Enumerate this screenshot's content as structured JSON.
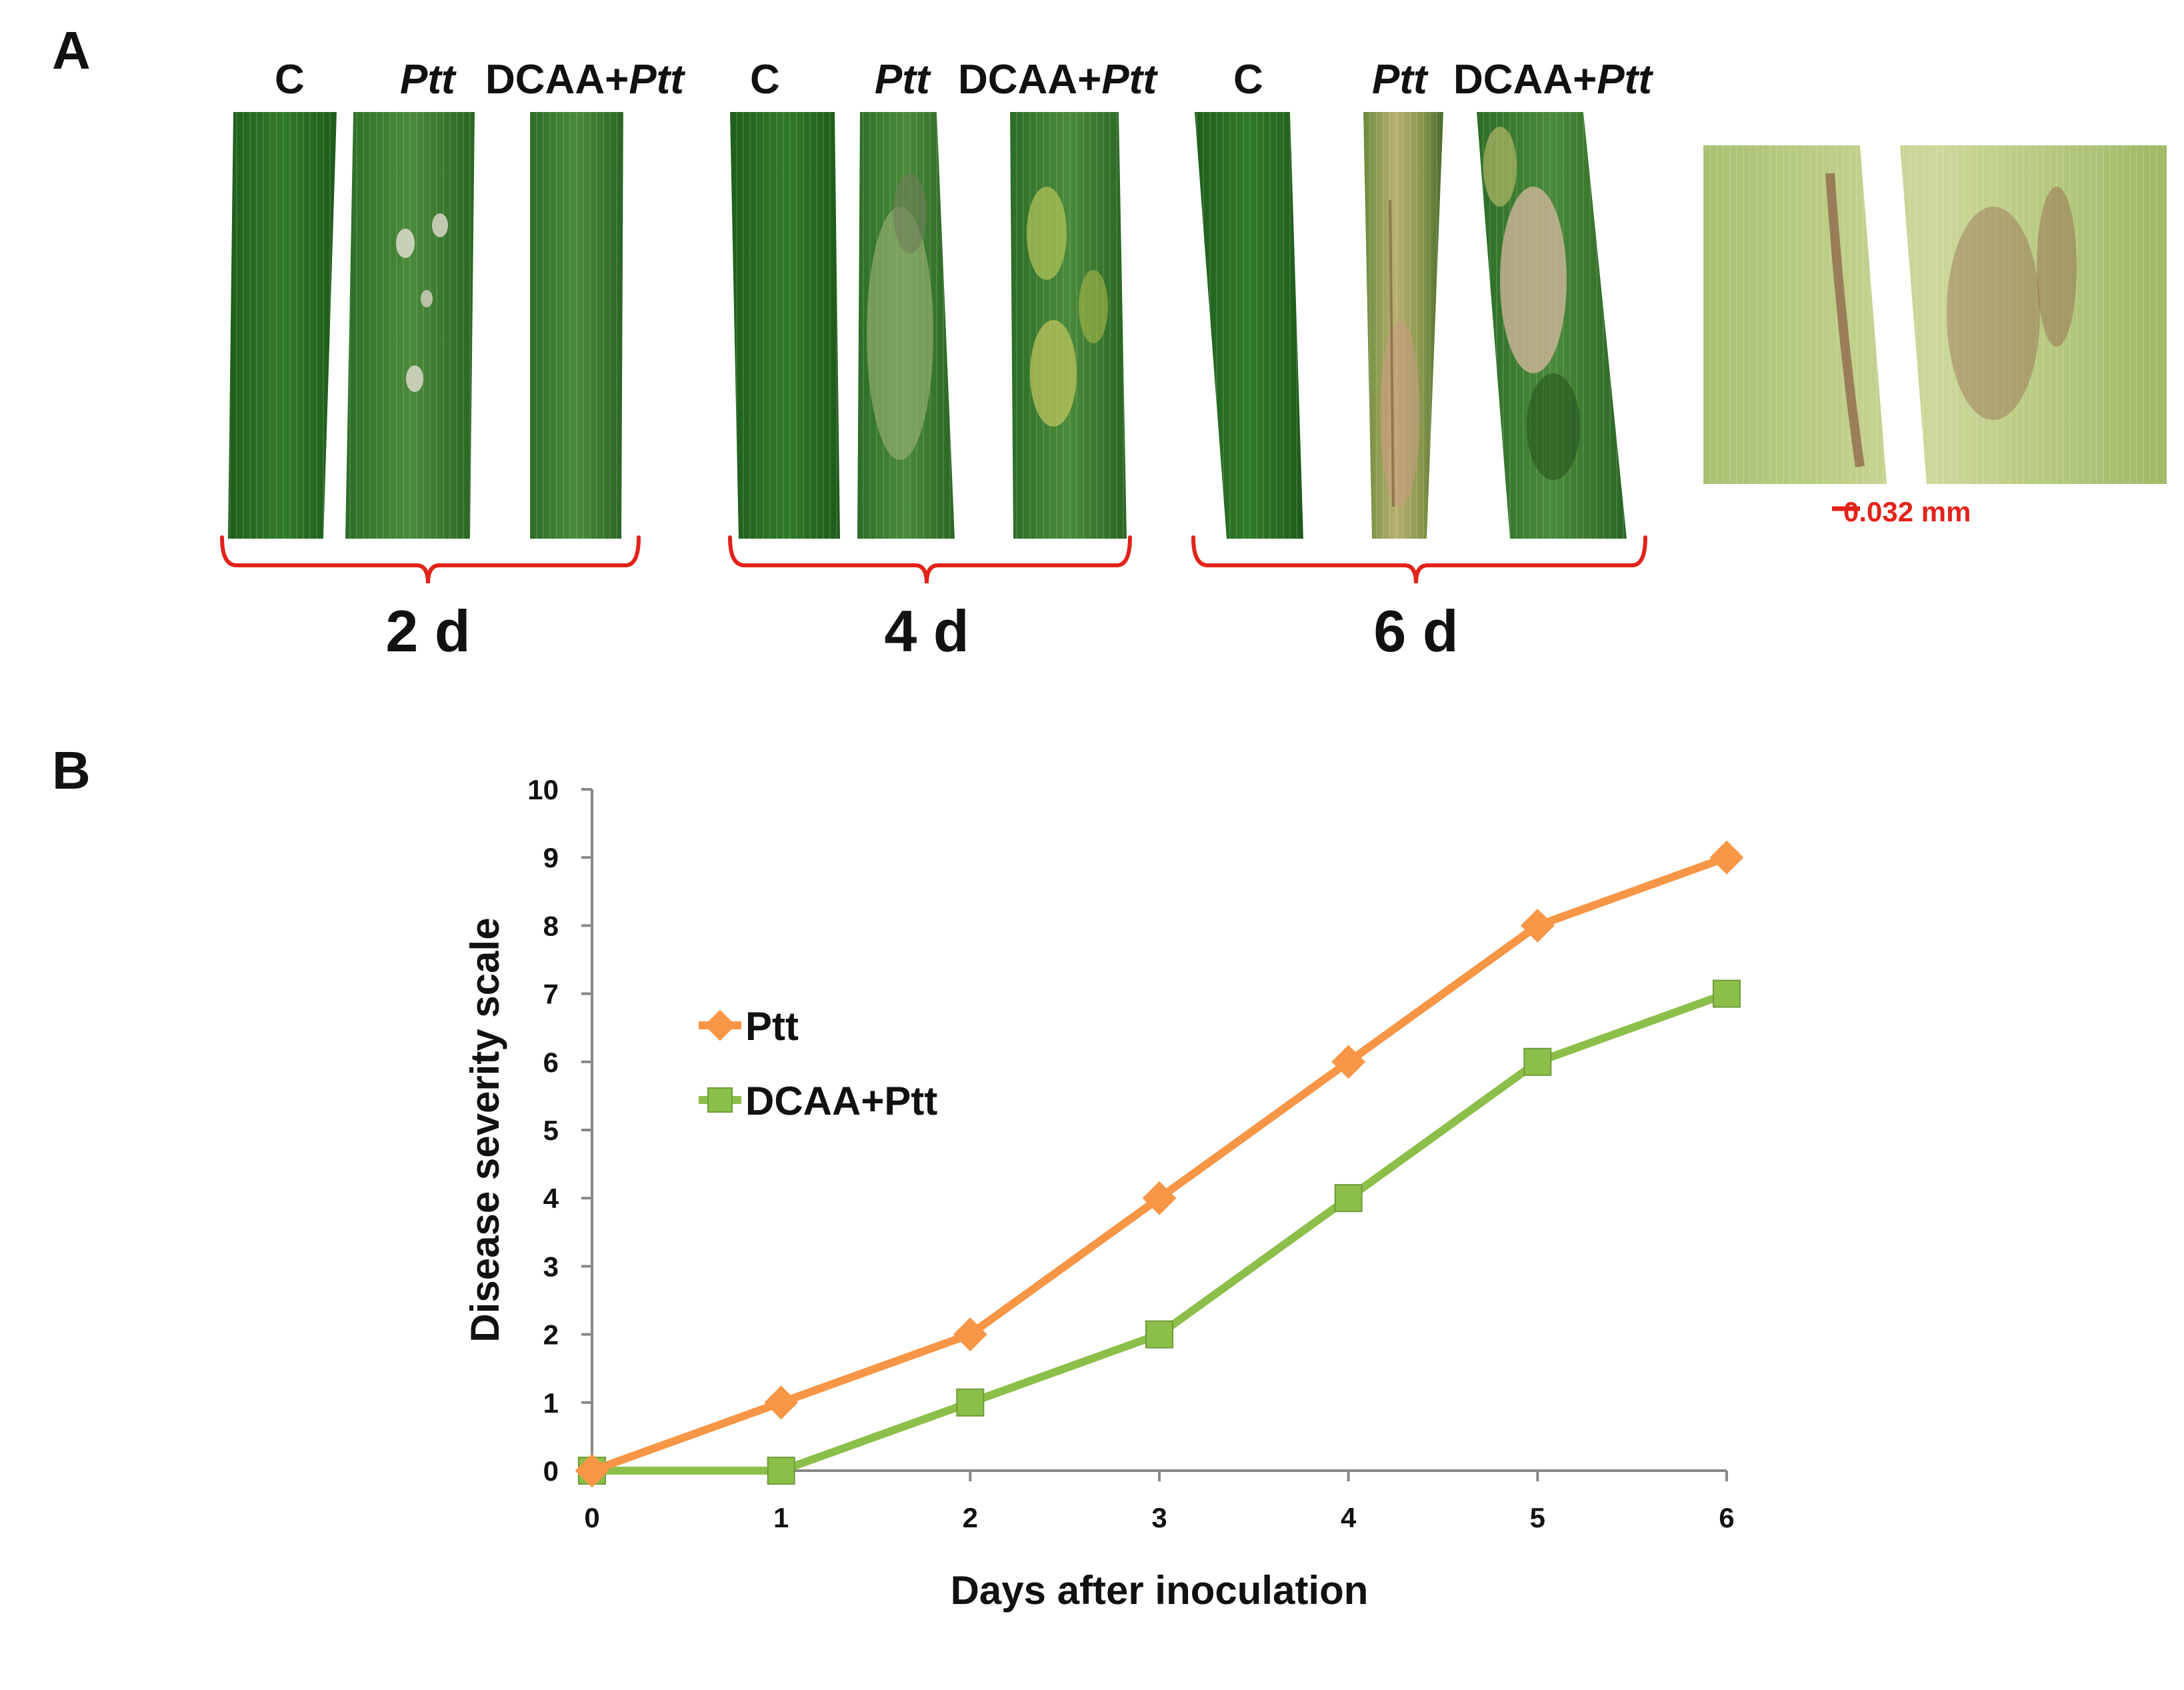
{
  "panel_a": {
    "letter": "A",
    "groups": [
      {
        "day_label": "2 d",
        "labels": {
          "control": "C",
          "ptt": "Ptt",
          "dcaa_prefix": "DCAA+",
          "dcaa_italic": "Ptt"
        }
      },
      {
        "day_label": "4 d",
        "labels": {
          "control": "C",
          "ptt": "Ptt",
          "dcaa_prefix": "DCAA+",
          "dcaa_italic": "Ptt"
        }
      },
      {
        "day_label": "6 d",
        "labels": {
          "control": "C",
          "ptt": "Ptt",
          "dcaa_prefix": "DCAA+",
          "dcaa_italic": "Ptt"
        }
      }
    ],
    "scale_bar": "0.032 mm",
    "bracket_color": "#e2231a"
  },
  "panel_b": {
    "letter": "B"
  },
  "chart_data": {
    "type": "line",
    "title": "",
    "xlabel": "Days after inoculation",
    "ylabel": "Disease severity scale",
    "x": [
      0,
      1,
      2,
      3,
      4,
      5,
      6
    ],
    "xlim": [
      0,
      6
    ],
    "ylim": [
      0,
      10
    ],
    "yticks": [
      0,
      1,
      2,
      3,
      4,
      5,
      6,
      7,
      8,
      9,
      10
    ],
    "grid": false,
    "legend_position": "left",
    "series": [
      {
        "name": "Ptt",
        "marker": "diamond",
        "color": "#f79646",
        "values": [
          0,
          1,
          2,
          4,
          6,
          8,
          9
        ]
      },
      {
        "name": "DCAA+Ptt",
        "marker": "square",
        "color": "#8cbf4a",
        "values": [
          0,
          0,
          1,
          2,
          4,
          6,
          7
        ]
      }
    ]
  }
}
